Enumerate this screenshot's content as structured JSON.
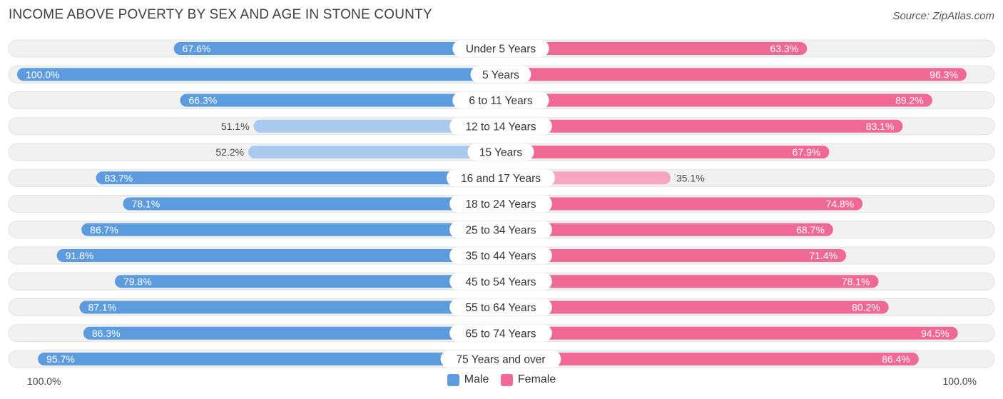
{
  "header": {
    "title": "INCOME ABOVE POVERTY BY SEX AND AGE IN STONE COUNTY",
    "source": "Source: ZipAtlas.com"
  },
  "axis": {
    "left_label": "100.0%",
    "right_label": "100.0%"
  },
  "legend": {
    "male_label": "Male",
    "female_label": "Female"
  },
  "colors": {
    "male_strong": "#5b9bde",
    "male_light": "#a9c9ee",
    "female_strong": "#f06894",
    "female_light": "#f6a6c0",
    "row_bg": "#f1f1f1"
  },
  "chart_data": {
    "type": "bar",
    "orientation": "horizontal-diverging",
    "title": "INCOME ABOVE POVERTY BY SEX AND AGE IN STONE COUNTY",
    "categories": [
      "Under 5 Years",
      "5 Years",
      "6 to 11 Years",
      "12 to 14 Years",
      "15 Years",
      "16 and 17 Years",
      "18 to 24 Years",
      "25 to 34 Years",
      "35 to 44 Years",
      "45 to 54 Years",
      "55 to 64 Years",
      "65 to 74 Years",
      "75 Years and over"
    ],
    "series": [
      {
        "name": "Male",
        "values": [
          67.6,
          100.0,
          66.3,
          51.1,
          52.2,
          83.7,
          78.1,
          86.7,
          91.8,
          79.8,
          87.1,
          86.3,
          95.7
        ]
      },
      {
        "name": "Female",
        "values": [
          63.3,
          96.3,
          89.2,
          83.1,
          67.9,
          35.1,
          74.8,
          68.7,
          71.4,
          78.1,
          80.2,
          94.5,
          86.4
        ]
      }
    ],
    "value_labels": {
      "Male": [
        "67.6%",
        "100.0%",
        "66.3%",
        "51.1%",
        "52.2%",
        "83.7%",
        "78.1%",
        "86.7%",
        "91.8%",
        "79.8%",
        "87.1%",
        "86.3%",
        "95.7%"
      ],
      "Female": [
        "63.3%",
        "96.3%",
        "89.2%",
        "83.1%",
        "67.9%",
        "35.1%",
        "74.8%",
        "68.7%",
        "71.4%",
        "78.1%",
        "80.2%",
        "94.5%",
        "86.4%"
      ]
    },
    "xlim": [
      -100,
      100
    ],
    "legend_position": "bottom-center"
  }
}
